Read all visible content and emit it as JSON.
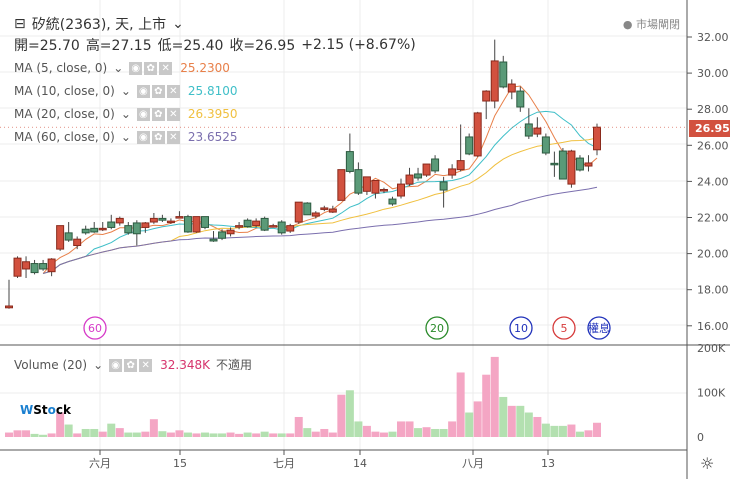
{
  "header": {
    "title": "矽統(2363), 天, 上市",
    "open": "開=25.70",
    "high": "高=27.15",
    "low": "低=25.40",
    "close": "收=26.95",
    "change": "+2.15 (+8.67%)",
    "market_status": "市場閘閉",
    "last_price": "26.95"
  },
  "indicators": [
    {
      "label": "MA (5, close, 0)",
      "value": "25.2300",
      "color": "#e8804a",
      "period": 5
    },
    {
      "label": "MA (10, close, 0)",
      "value": "25.8100",
      "color": "#3fbfc8",
      "period": 10
    },
    {
      "label": "MA (20, close, 0)",
      "value": "26.3950",
      "color": "#f0c040",
      "period": 20
    },
    {
      "label": "MA (60, close, 0)",
      "value": "23.6525",
      "color": "#7b6fae",
      "period": 60
    }
  ],
  "volume": {
    "label": "Volume (20)",
    "value": "32.348K",
    "note": "不適用",
    "axis": [
      "200K",
      "100K",
      "0"
    ]
  },
  "price_axis": [
    "32.00",
    "30.00",
    "28.00",
    "26.00",
    "24.00",
    "22.00",
    "20.00",
    "18.00",
    "16.00"
  ],
  "x_axis": [
    "六月",
    "15",
    "七月",
    "14",
    "八月",
    "13"
  ],
  "markers": [
    {
      "text": "60",
      "color": "#d63ac8"
    },
    {
      "text": "20",
      "color": "#2a8a2a"
    },
    {
      "text": "10",
      "color": "#2233bb"
    },
    {
      "text": "5",
      "color": "#d63a3a"
    },
    {
      "text": "權息",
      "color": "#2233bb"
    }
  ],
  "logo": "WStock",
  "colors": {
    "up": "#d2513f",
    "down": "#5a9a78",
    "vol_up": "#f4a6c4",
    "vol_down": "#b3e0b0"
  },
  "chart_data": {
    "type": "candlestick",
    "ylim": [
      16,
      32.5
    ],
    "candles": [
      [
        16.95,
        18.5,
        16.9,
        17.05
      ],
      [
        18.7,
        19.8,
        18.6,
        19.7
      ],
      [
        19.1,
        19.8,
        18.6,
        19.5
      ],
      [
        19.4,
        19.6,
        18.8,
        18.9
      ],
      [
        19.4,
        19.6,
        19.0,
        19.1
      ],
      [
        18.95,
        19.7,
        18.7,
        19.65
      ],
      [
        20.2,
        21.5,
        20.1,
        21.5
      ],
      [
        21.1,
        21.7,
        20.6,
        20.7
      ],
      [
        20.4,
        20.9,
        20.2,
        20.75
      ],
      [
        21.3,
        21.5,
        21.0,
        21.1
      ],
      [
        21.35,
        21.7,
        21.1,
        21.15
      ],
      [
        21.3,
        21.7,
        21.2,
        21.35
      ],
      [
        21.7,
        22.1,
        21.3,
        21.4
      ],
      [
        21.65,
        22.0,
        21.5,
        21.9
      ],
      [
        21.5,
        21.7,
        21.0,
        21.1
      ],
      [
        21.65,
        21.8,
        20.4,
        21.05
      ],
      [
        21.4,
        21.7,
        21.1,
        21.65
      ],
      [
        21.7,
        22.2,
        21.6,
        21.9
      ],
      [
        21.9,
        22.1,
        21.7,
        21.8
      ],
      [
        21.7,
        21.9,
        21.6,
        21.75
      ],
      [
        21.95,
        22.3,
        21.9,
        22.0
      ],
      [
        22.0,
        22.1,
        21.1,
        21.15
      ],
      [
        21.15,
        22.0,
        21.1,
        22.0
      ],
      [
        22.0,
        22.0,
        21.3,
        21.4
      ],
      [
        20.75,
        21.2,
        20.6,
        20.65
      ],
      [
        21.15,
        21.3,
        20.7,
        20.8
      ],
      [
        21.05,
        21.4,
        20.9,
        21.25
      ],
      [
        21.45,
        21.7,
        21.3,
        21.5
      ],
      [
        21.8,
        21.9,
        21.4,
        21.45
      ],
      [
        21.5,
        21.9,
        21.4,
        21.75
      ],
      [
        21.9,
        22.0,
        21.2,
        21.25
      ],
      [
        21.5,
        21.6,
        21.4,
        21.5
      ],
      [
        21.7,
        21.8,
        21.0,
        21.1
      ],
      [
        21.2,
        21.6,
        21.1,
        21.5
      ],
      [
        21.7,
        22.8,
        21.6,
        22.8
      ],
      [
        22.75,
        22.8,
        22.1,
        22.1
      ],
      [
        22.03,
        22.3,
        21.9,
        22.2
      ],
      [
        22.45,
        22.6,
        22.3,
        22.48
      ],
      [
        22.25,
        22.6,
        22.2,
        22.42
      ],
      [
        22.9,
        24.6,
        22.9,
        24.6
      ],
      [
        25.6,
        26.6,
        24.4,
        24.5
      ],
      [
        24.6,
        25.0,
        23.2,
        23.3
      ],
      [
        23.4,
        24.2,
        23.2,
        24.2
      ],
      [
        23.3,
        24.0,
        23.0,
        24.0
      ],
      [
        23.47,
        23.6,
        23.3,
        23.5
      ],
      [
        22.97,
        23.1,
        22.6,
        22.7
      ],
      [
        23.14,
        24.1,
        23.0,
        23.8
      ],
      [
        23.8,
        24.7,
        23.7,
        24.3
      ],
      [
        24.36,
        24.7,
        24.0,
        24.14
      ],
      [
        24.3,
        24.9,
        24.2,
        24.91
      ],
      [
        25.19,
        25.4,
        24.4,
        24.53
      ],
      [
        23.92,
        24.2,
        22.5,
        23.47
      ],
      [
        24.3,
        24.9,
        24.1,
        24.64
      ],
      [
        24.6,
        27.1,
        24.5,
        25.1
      ],
      [
        26.41,
        26.6,
        25.4,
        25.47
      ],
      [
        25.36,
        27.8,
        25.3,
        27.74
      ],
      [
        28.4,
        29.0,
        27.4,
        28.95
      ],
      [
        28.4,
        31.8,
        28.0,
        30.62
      ],
      [
        30.56,
        30.9,
        29.1,
        29.18
      ],
      [
        28.9,
        29.6,
        28.5,
        29.34
      ],
      [
        28.95,
        29.2,
        27.8,
        28.07
      ],
      [
        27.13,
        28.0,
        26.3,
        26.46
      ],
      [
        26.57,
        27.5,
        26.4,
        26.9
      ],
      [
        26.41,
        26.6,
        25.4,
        25.52
      ],
      [
        24.95,
        25.6,
        24.2,
        24.91
      ],
      [
        25.63,
        25.8,
        24.06,
        24.08
      ],
      [
        23.8,
        25.7,
        23.6,
        25.63
      ],
      [
        25.24,
        25.4,
        24.5,
        24.58
      ],
      [
        24.8,
        25.4,
        24.5,
        24.97
      ],
      [
        25.7,
        27.15,
        25.4,
        26.95
      ]
    ],
    "volumes_k": [
      10,
      15,
      15,
      7,
      5,
      8,
      55,
      28,
      8,
      18,
      18,
      12,
      30,
      20,
      10,
      10,
      12,
      40,
      13,
      10,
      15,
      10,
      8,
      10,
      8,
      8,
      10,
      7,
      10,
      8,
      12,
      8,
      8,
      8,
      45,
      20,
      12,
      18,
      10,
      95,
      105,
      35,
      25,
      12,
      10,
      12,
      35,
      35,
      20,
      22,
      18,
      18,
      35,
      145,
      55,
      80,
      140,
      180,
      90,
      70,
      70,
      55,
      45,
      30,
      25,
      25,
      28,
      12,
      15,
      32
    ],
    "volume_ylim": [
      0,
      200
    ]
  }
}
